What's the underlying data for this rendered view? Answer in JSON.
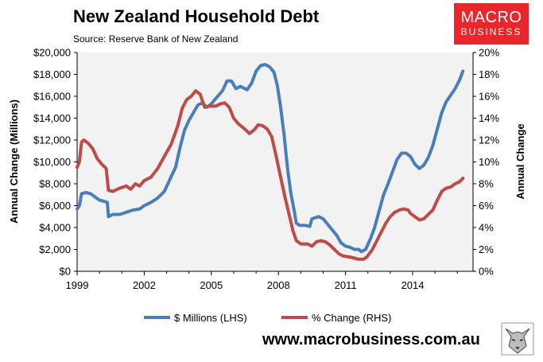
{
  "header": {
    "title": "New Zealand Household Debt",
    "source": "Source: Reserve Bank of New Zealand"
  },
  "logo": {
    "line1": "MACRO",
    "line2": "BUSINESS"
  },
  "footer": {
    "url": "www.macrobusiness.com.au"
  },
  "colors": {
    "blue": "#4a7ebb",
    "red": "#be4b48",
    "plot_bg": "#f2f2f2",
    "logo_bg": "#e8262b"
  },
  "icons": {
    "mascot": "wolf-head-icon"
  },
  "chart_data": {
    "type": "line",
    "title": "New Zealand Household Debt",
    "ylabel": "Annual Change (Millions)",
    "y2label": "Annual Change",
    "xlim": [
      1999,
      2016.7
    ],
    "ylim": [
      0,
      20000
    ],
    "y2lim": [
      0,
      20
    ],
    "x_ticks": [
      "1999",
      "2002",
      "2005",
      "2008",
      "2011",
      "2014"
    ],
    "y_ticks": [
      "$0",
      "$2,000",
      "$4,000",
      "$6,000",
      "$8,000",
      "$10,000",
      "$12,000",
      "$14,000",
      "$16,000",
      "$18,000",
      "$20,000"
    ],
    "y2_ticks": [
      "0%",
      "2%",
      "4%",
      "6%",
      "8%",
      "10%",
      "12%",
      "14%",
      "16%",
      "18%",
      "20%"
    ],
    "grid": false,
    "legend_position": "bottom",
    "series": [
      {
        "name": "$ Millions (LHS)",
        "axis": "left",
        "color": "#4a7ebb",
        "points": [
          [
            1999.0,
            5700
          ],
          [
            1999.1,
            6000
          ],
          [
            1999.2,
            7100
          ],
          [
            1999.4,
            7200
          ],
          [
            1999.6,
            7100
          ],
          [
            1999.8,
            6800
          ],
          [
            2000.0,
            6500
          ],
          [
            2000.2,
            6400
          ],
          [
            2000.35,
            6300
          ],
          [
            2000.4,
            5000
          ],
          [
            2000.6,
            5200
          ],
          [
            2000.9,
            5200
          ],
          [
            2001.2,
            5400
          ],
          [
            2001.5,
            5600
          ],
          [
            2001.8,
            5700
          ],
          [
            2002.0,
            6000
          ],
          [
            2002.3,
            6300
          ],
          [
            2002.6,
            6700
          ],
          [
            2002.9,
            7300
          ],
          [
            2003.1,
            8200
          ],
          [
            2003.4,
            9500
          ],
          [
            2003.6,
            11300
          ],
          [
            2003.8,
            12900
          ],
          [
            2004.0,
            13800
          ],
          [
            2004.2,
            14500
          ],
          [
            2004.4,
            15200
          ],
          [
            2004.6,
            15400
          ],
          [
            2004.8,
            15000
          ],
          [
            2005.0,
            15300
          ],
          [
            2005.2,
            15800
          ],
          [
            2005.5,
            16500
          ],
          [
            2005.7,
            17400
          ],
          [
            2005.9,
            17400
          ],
          [
            2006.1,
            16700
          ],
          [
            2006.3,
            16900
          ],
          [
            2006.6,
            16600
          ],
          [
            2006.8,
            17200
          ],
          [
            2007.0,
            18300
          ],
          [
            2007.2,
            18800
          ],
          [
            2007.4,
            18900
          ],
          [
            2007.6,
            18700
          ],
          [
            2007.8,
            18200
          ],
          [
            2007.95,
            17000
          ],
          [
            2008.1,
            15000
          ],
          [
            2008.25,
            12500
          ],
          [
            2008.4,
            9500
          ],
          [
            2008.55,
            7200
          ],
          [
            2008.7,
            5600
          ],
          [
            2008.8,
            4400
          ],
          [
            2008.95,
            4200
          ],
          [
            2009.2,
            4200
          ],
          [
            2009.4,
            4100
          ],
          [
            2009.5,
            4800
          ],
          [
            2009.8,
            5000
          ],
          [
            2010.0,
            4800
          ],
          [
            2010.2,
            4300
          ],
          [
            2010.4,
            3800
          ],
          [
            2010.6,
            3300
          ],
          [
            2010.8,
            2600
          ],
          [
            2011.0,
            2300
          ],
          [
            2011.2,
            2200
          ],
          [
            2011.4,
            2000
          ],
          [
            2011.6,
            2000
          ],
          [
            2011.7,
            1800
          ],
          [
            2011.9,
            2000
          ],
          [
            2012.1,
            2900
          ],
          [
            2012.3,
            4000
          ],
          [
            2012.5,
            5500
          ],
          [
            2012.7,
            7000
          ],
          [
            2012.9,
            8000
          ],
          [
            2013.1,
            9100
          ],
          [
            2013.3,
            10200
          ],
          [
            2013.5,
            10800
          ],
          [
            2013.7,
            10800
          ],
          [
            2013.9,
            10500
          ],
          [
            2014.1,
            9800
          ],
          [
            2014.3,
            9400
          ],
          [
            2014.5,
            9700
          ],
          [
            2014.7,
            10400
          ],
          [
            2014.9,
            11500
          ],
          [
            2015.1,
            13000
          ],
          [
            2015.3,
            14500
          ],
          [
            2015.5,
            15500
          ],
          [
            2015.7,
            16100
          ],
          [
            2015.9,
            16700
          ],
          [
            2016.1,
            17500
          ],
          [
            2016.25,
            18300
          ]
        ]
      },
      {
        "name": "% Change (RHS)",
        "axis": "right",
        "color": "#be4b48",
        "points": [
          [
            1999.0,
            9.5
          ],
          [
            1999.1,
            10.0
          ],
          [
            1999.2,
            11.8
          ],
          [
            1999.3,
            12.0
          ],
          [
            1999.5,
            11.7
          ],
          [
            1999.7,
            11.2
          ],
          [
            1999.9,
            10.3
          ],
          [
            2000.1,
            9.8
          ],
          [
            2000.3,
            9.4
          ],
          [
            2000.4,
            7.4
          ],
          [
            2000.6,
            7.3
          ],
          [
            2000.9,
            7.6
          ],
          [
            2001.2,
            7.8
          ],
          [
            2001.4,
            7.5
          ],
          [
            2001.6,
            8.0
          ],
          [
            2001.8,
            7.8
          ],
          [
            2002.0,
            8.3
          ],
          [
            2002.3,
            8.6
          ],
          [
            2002.6,
            9.4
          ],
          [
            2002.9,
            10.5
          ],
          [
            2003.2,
            11.6
          ],
          [
            2003.5,
            13.3
          ],
          [
            2003.7,
            14.9
          ],
          [
            2003.9,
            15.7
          ],
          [
            2004.1,
            16.0
          ],
          [
            2004.3,
            16.5
          ],
          [
            2004.5,
            16.2
          ],
          [
            2004.7,
            15.0
          ],
          [
            2004.9,
            15.1
          ],
          [
            2005.2,
            15.1
          ],
          [
            2005.4,
            15.3
          ],
          [
            2005.6,
            15.4
          ],
          [
            2005.8,
            15.0
          ],
          [
            2006.0,
            14.0
          ],
          [
            2006.2,
            13.5
          ],
          [
            2006.5,
            13.0
          ],
          [
            2006.7,
            12.6
          ],
          [
            2006.9,
            12.9
          ],
          [
            2007.1,
            13.4
          ],
          [
            2007.3,
            13.3
          ],
          [
            2007.5,
            13.0
          ],
          [
            2007.7,
            12.3
          ],
          [
            2007.9,
            10.5
          ],
          [
            2008.1,
            8.6
          ],
          [
            2008.3,
            6.7
          ],
          [
            2008.5,
            5.0
          ],
          [
            2008.65,
            3.7
          ],
          [
            2008.8,
            2.8
          ],
          [
            2009.0,
            2.5
          ],
          [
            2009.3,
            2.5
          ],
          [
            2009.5,
            2.3
          ],
          [
            2009.7,
            2.7
          ],
          [
            2009.9,
            2.8
          ],
          [
            2010.1,
            2.7
          ],
          [
            2010.3,
            2.4
          ],
          [
            2010.5,
            2.0
          ],
          [
            2010.7,
            1.6
          ],
          [
            2010.9,
            1.4
          ],
          [
            2011.2,
            1.3
          ],
          [
            2011.4,
            1.2
          ],
          [
            2011.6,
            1.1
          ],
          [
            2011.8,
            1.1
          ],
          [
            2011.95,
            1.3
          ],
          [
            2012.2,
            2.0
          ],
          [
            2012.4,
            2.8
          ],
          [
            2012.6,
            3.6
          ],
          [
            2012.8,
            4.4
          ],
          [
            2013.0,
            5.0
          ],
          [
            2013.2,
            5.4
          ],
          [
            2013.4,
            5.6
          ],
          [
            2013.6,
            5.7
          ],
          [
            2013.8,
            5.6
          ],
          [
            2013.9,
            5.3
          ],
          [
            2014.1,
            5.0
          ],
          [
            2014.3,
            4.7
          ],
          [
            2014.5,
            4.8
          ],
          [
            2014.7,
            5.2
          ],
          [
            2014.9,
            5.6
          ],
          [
            2015.1,
            6.5
          ],
          [
            2015.3,
            7.3
          ],
          [
            2015.5,
            7.6
          ],
          [
            2015.7,
            7.7
          ],
          [
            2015.9,
            8.0
          ],
          [
            2016.1,
            8.2
          ],
          [
            2016.25,
            8.5
          ]
        ]
      }
    ]
  }
}
